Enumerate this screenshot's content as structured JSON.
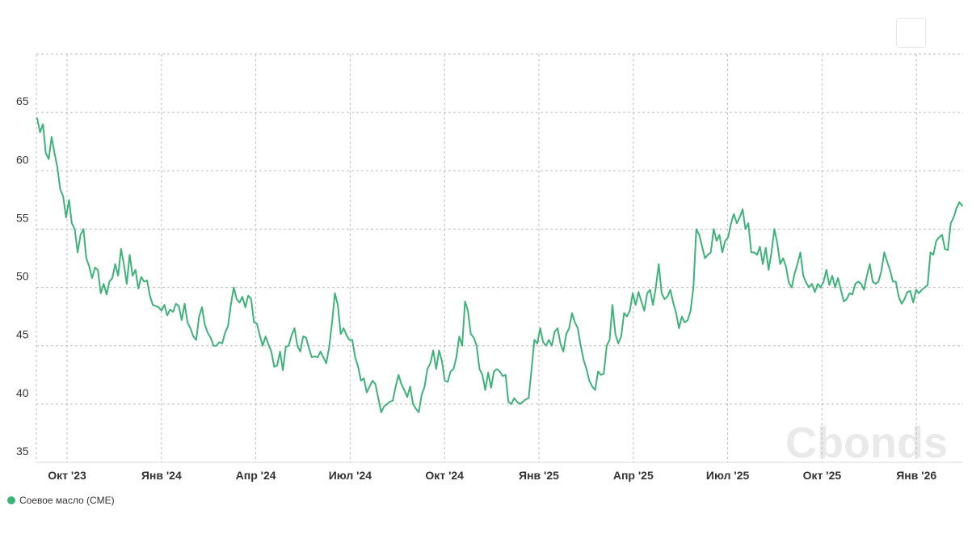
{
  "watermark": "Cbonds",
  "legend": {
    "label": "Соевое масло (CME)",
    "color": "#3db37a"
  },
  "chart_data": {
    "type": "line",
    "ylim": [
      35,
      70
    ],
    "y_ticks": [
      35,
      40,
      45,
      50,
      55,
      60,
      65
    ],
    "x_labels": [
      "Окт '23",
      "Янв '24",
      "Апр '24",
      "Июл '24",
      "Окт '24",
      "Янв '25",
      "Апр '25",
      "Июл '25",
      "Окт '25",
      "Янв '26"
    ],
    "grid": true,
    "series": [
      {
        "name": "Соевое масло (CME)",
        "color": "#3db37a",
        "values": [
          64.5,
          63.3,
          64.0,
          61.5,
          61.0,
          62.9,
          61.5,
          60.3,
          58.4,
          57.8,
          56.0,
          57.5,
          55.5,
          55.0,
          53.0,
          54.5,
          55.0,
          52.5,
          51.8,
          50.8,
          51.7,
          51.5,
          49.5,
          50.3,
          49.4,
          50.5,
          50.8,
          52.0,
          51.0,
          53.3,
          52.0,
          50.3,
          52.8,
          51.0,
          51.5,
          49.9,
          50.9,
          50.5,
          50.6,
          49.3,
          48.5,
          48.4,
          48.3,
          48.0,
          48.5,
          47.6,
          48.1,
          47.9,
          48.6,
          48.4,
          47.2,
          48.6,
          47.0,
          46.5,
          45.8,
          45.5,
          47.5,
          48.3,
          46.8,
          46.1,
          45.7,
          45.0,
          45.0,
          45.3,
          45.2,
          46.1,
          46.7,
          48.5,
          50.0,
          49.0,
          48.7,
          49.2,
          48.3,
          49.3,
          49.0,
          47.0,
          46.9,
          45.9,
          45.0,
          45.8,
          45.1,
          44.5,
          43.2,
          43.3,
          44.5,
          42.9,
          44.9,
          45.0,
          45.9,
          46.5,
          45.0,
          44.5,
          45.8,
          45.7,
          44.8,
          44.0,
          44.1,
          44.0,
          44.5,
          44.0,
          43.5,
          44.9,
          47.0,
          49.5,
          48.5,
          46.0,
          46.5,
          45.9,
          45.5,
          45.5,
          44.0,
          43.2,
          42.0,
          42.2,
          41.0,
          41.5,
          42.0,
          41.7,
          40.5,
          39.3,
          39.8,
          40.0,
          40.2,
          40.3,
          41.5,
          42.5,
          41.7,
          41.2,
          40.6,
          41.5,
          40.0,
          39.6,
          39.3,
          40.8,
          41.5,
          43.0,
          43.5,
          44.6,
          43.0,
          44.6,
          43.7,
          42.0,
          41.9,
          42.8,
          43.0,
          44.0,
          45.8,
          45.0,
          48.8,
          48.0,
          46.0,
          45.7,
          45.0,
          43.0,
          42.5,
          41.2,
          42.7,
          41.4,
          42.8,
          43.0,
          42.8,
          42.4,
          42.5,
          40.2,
          40.0,
          40.5,
          40.2,
          40.0,
          40.2,
          40.4,
          40.5,
          43.0,
          45.5,
          45.2,
          46.5,
          45.3,
          45.0,
          45.5,
          45.0,
          46.2,
          46.5,
          45.2,
          44.5,
          46.0,
          46.5,
          47.8,
          47.0,
          46.5,
          45.0,
          43.8,
          43.0,
          42.0,
          41.5,
          41.2,
          42.8,
          42.5,
          42.6,
          45.0,
          45.5,
          48.5,
          46.0,
          45.2,
          45.8,
          47.8,
          47.5,
          48.0,
          49.5,
          48.5,
          49.6,
          48.8,
          48.0,
          49.5,
          49.8,
          48.5,
          50.0,
          52.0,
          49.5,
          49.0,
          49.2,
          49.8,
          48.7,
          47.8,
          46.5,
          47.5,
          47.0,
          47.2,
          48.0,
          50.0,
          55.0,
          54.5,
          53.5,
          52.5,
          52.8,
          53.0,
          55.0,
          54.0,
          54.5,
          53.0,
          54.0,
          54.3,
          55.5,
          56.3,
          55.5,
          56.0,
          56.7,
          55.0,
          55.5,
          53.0,
          53.0,
          52.8,
          53.5,
          52.0,
          53.4,
          51.5,
          53.0,
          55.0,
          53.8,
          52.0,
          52.5,
          51.8,
          50.4,
          50.0,
          51.2,
          52.0,
          53.0,
          51.0,
          50.4,
          50.0,
          50.3,
          49.6,
          50.3,
          50.0,
          50.5,
          51.5,
          50.2,
          51.0,
          50.0,
          50.8,
          49.8,
          48.8,
          49.0,
          49.5,
          49.4,
          50.3,
          50.5,
          50.3,
          49.8,
          51.0,
          52.0,
          50.5,
          50.3,
          50.5,
          51.4,
          53.0,
          52.2,
          51.5,
          50.5,
          50.5,
          49.2,
          48.6,
          49.0,
          49.6,
          49.7,
          48.7,
          49.8,
          49.5,
          49.8,
          50.0,
          50.2,
          53.0,
          52.8,
          54.0,
          54.3,
          54.5,
          53.3,
          53.2,
          55.5,
          56.0,
          56.8,
          57.3,
          57.0
        ]
      }
    ]
  }
}
